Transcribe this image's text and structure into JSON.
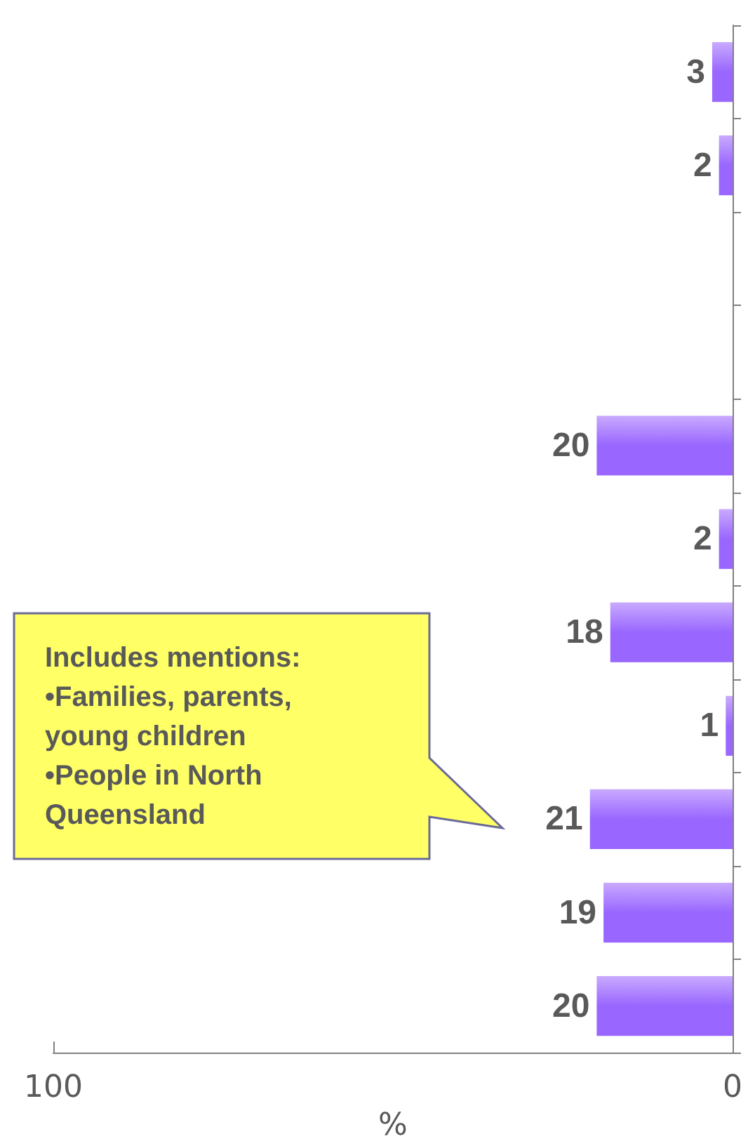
{
  "chart_data": {
    "type": "bar",
    "orientation": "horizontal",
    "categories": [
      null,
      null,
      null,
      null,
      null,
      null,
      null,
      null,
      null,
      null,
      null
    ],
    "values": [
      3,
      2,
      null,
      null,
      20,
      2,
      18,
      1,
      21,
      19,
      20
    ],
    "color": "#9966ff",
    "data_labels": true,
    "xlabel": "%",
    "xlim": [
      100,
      0
    ],
    "xticks": [
      100,
      0
    ],
    "grid": false,
    "annotations": [
      "Includes mentions:\n•Families, parents,\nyoung children\n•People in North\nQueensland"
    ]
  }
}
